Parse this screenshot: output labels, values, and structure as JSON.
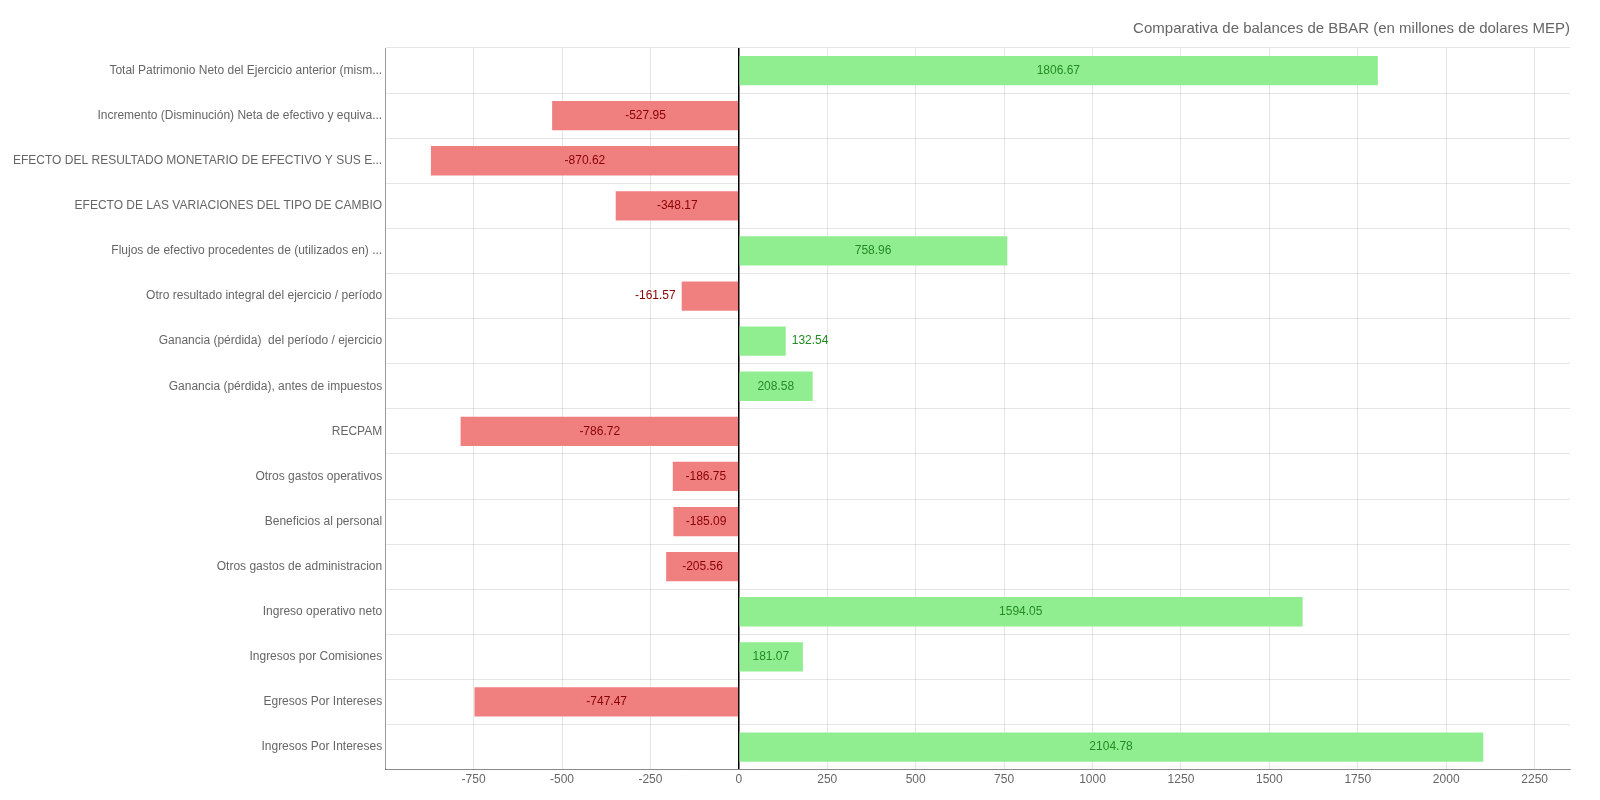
{
  "chart_data": {
    "type": "bar",
    "orientation": "horizontal",
    "title": "Comparativa de balances de BBAR (en millones de dolares MEP)",
    "categories": [
      "Ingresos Por Intereses",
      "Egresos Por Intereses",
      "Ingresos por Comisiones",
      "Ingreso operativo neto",
      "Otros gastos de administracion",
      "Beneficios al personal",
      "Otros gastos operativos",
      "RECPAM",
      "Ganancia (pérdida), antes de impuestos",
      "Ganancia (pérdida)  del período / ejercicio",
      "Otro resultado integral del ejercicio / período",
      "Flujos de efectivo procedentes de (utilizados en) ...",
      "EFECTO DE LAS VARIACIONES DEL TIPO DE CAMBIO",
      "EFECTO DEL RESULTADO MONETARIO DE EFECTIVO Y SUS E...",
      "Incremento (Disminución) Neta de efectivo y equiva...",
      "Total Patrimonio Neto del Ejercicio anterior (mism..."
    ],
    "values": [
      2104.78,
      -747.47,
      181.07,
      1594.05,
      -205.56,
      -185.09,
      -186.75,
      -786.72,
      208.58,
      132.54,
      -161.57,
      758.96,
      -348.17,
      -870.62,
      -527.95,
      1806.67
    ],
    "colors": [
      "#90EE90",
      "#F08080",
      "#90EE90",
      "#90EE90",
      "#F08080",
      "#F08080",
      "#F08080",
      "#F08080",
      "#90EE90",
      "#90EE90",
      "#F08080",
      "#90EE90",
      "#F08080",
      "#F08080",
      "#F08080",
      "#90EE90"
    ],
    "xlim": [
      -1000,
      2350
    ],
    "xticks": [
      -750,
      -500,
      -250,
      0,
      250,
      500,
      750,
      1000,
      1250,
      1500,
      1750,
      2000,
      2250
    ],
    "grid": true,
    "data_labels": true
  }
}
